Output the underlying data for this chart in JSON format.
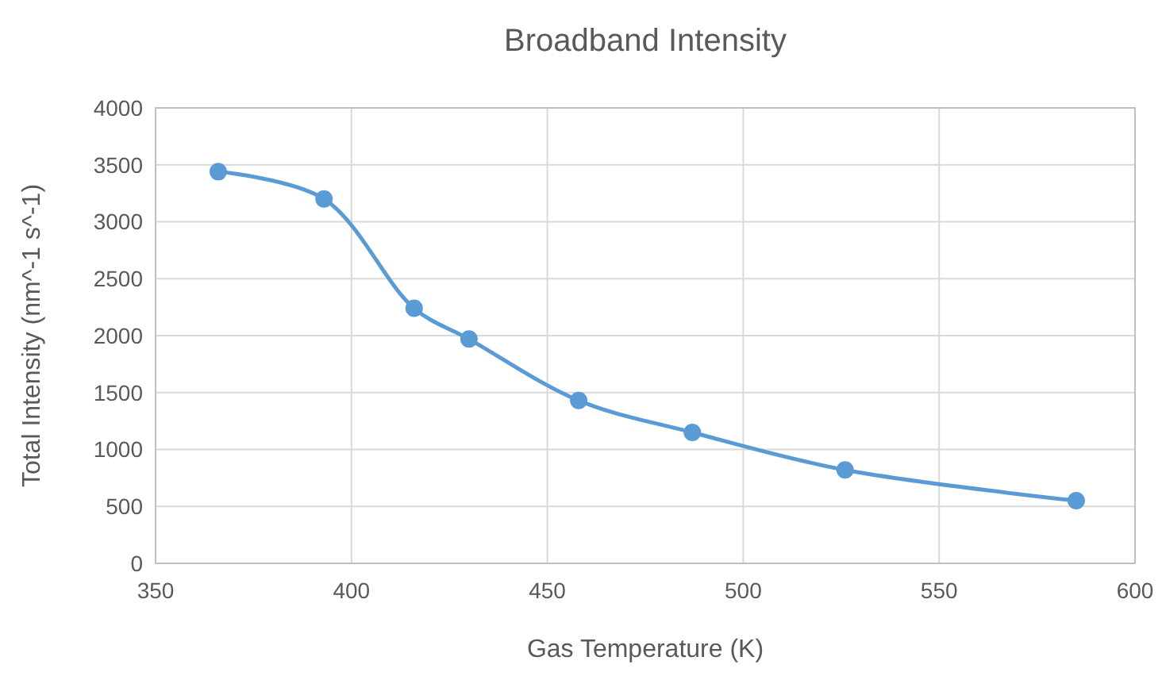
{
  "chart_data": {
    "type": "line",
    "title": "Broadband Intensity",
    "xlabel": "Gas Temperature (K)",
    "ylabel": "Total Intensity (nm^-1 s^-1)",
    "x": [
      366,
      393,
      416,
      430,
      458,
      487,
      526,
      585
    ],
    "series": [
      {
        "color": "#5b9bd5",
        "values": [
          3440,
          3200,
          2240,
          1970,
          1430,
          1150,
          820,
          550
        ]
      }
    ],
    "xlim": [
      350,
      600
    ],
    "xticks": [
      350,
      400,
      450,
      500,
      550,
      600
    ],
    "ylim": [
      0,
      4000
    ],
    "yticks": [
      0,
      500,
      1000,
      1500,
      2000,
      2500,
      3000,
      3500,
      4000
    ],
    "grid": true,
    "marker": "circle",
    "line_style": "solid"
  }
}
